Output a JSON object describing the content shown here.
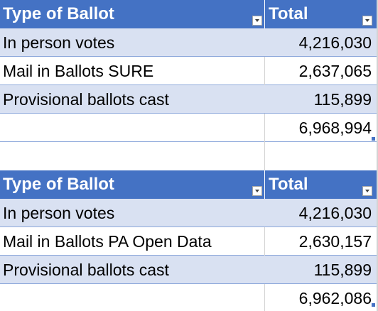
{
  "tables": [
    {
      "header": {
        "type_label": "Type of Ballot",
        "total_label": "Total"
      },
      "rows": [
        {
          "type": "In person votes",
          "total": "4,216,030"
        },
        {
          "type": "Mail in Ballots SURE",
          "total": "2,637,065"
        },
        {
          "type": "Provisional ballots cast",
          "total": "115,899"
        }
      ],
      "grand_total": "6,968,994"
    },
    {
      "header": {
        "type_label": "Type of Ballot",
        "total_label": "Total"
      },
      "rows": [
        {
          "type": "In person votes",
          "total": "4,216,030"
        },
        {
          "type": "Mail in Ballots PA Open Data",
          "total": "2,630,157"
        },
        {
          "type": "Provisional ballots cast",
          "total": "115,899"
        }
      ],
      "grand_total": "6,962,086"
    }
  ],
  "colors": {
    "header_fill": "#4472c4",
    "band_fill": "#d9e1f2",
    "border": "#8ea9db"
  },
  "icons": {
    "filter": "chevron-down-icon",
    "resize": "resize-handle-icon"
  }
}
